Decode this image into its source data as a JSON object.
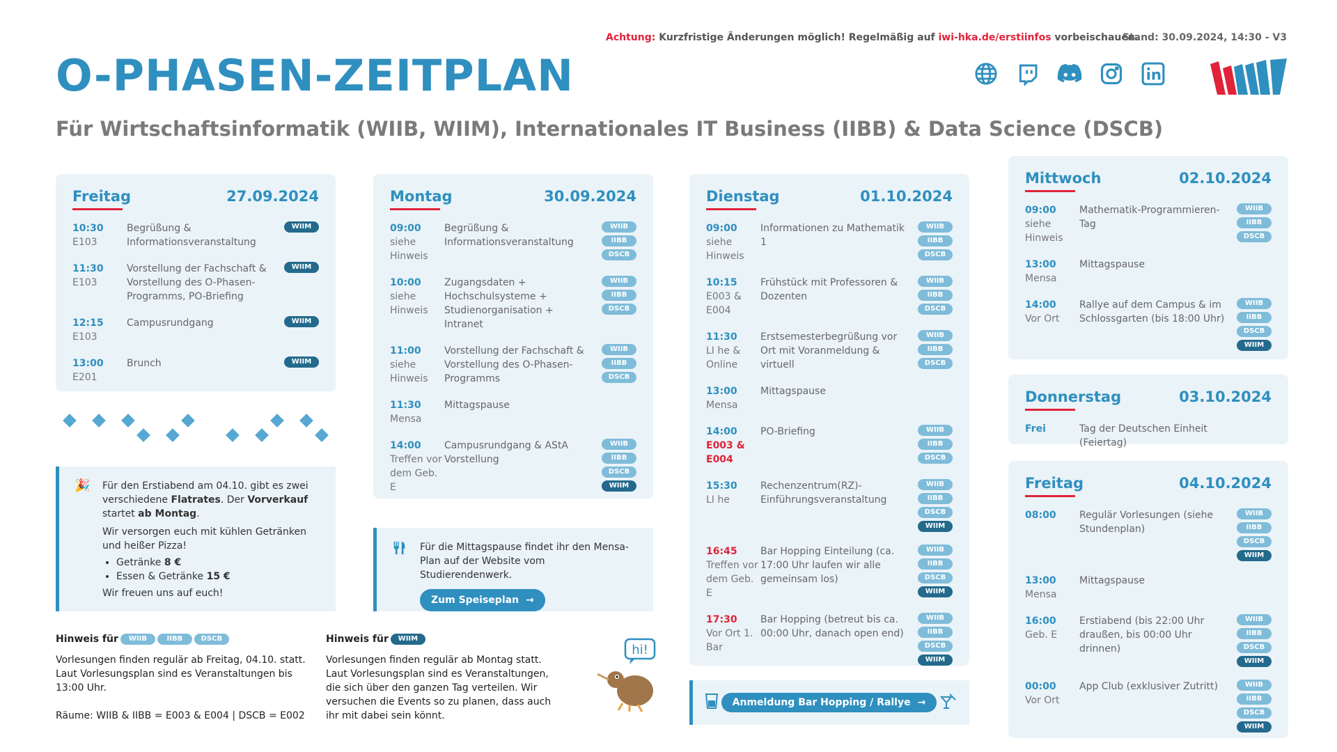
{
  "top": {
    "warn_label": "Achtung:",
    "warn_text": "Kurzfristige Änderungen möglich! Regelmäßig auf",
    "url": "iwi-hka.de/erstiinfos",
    "warn_tail": "vorbeischauen.",
    "stand": "Stand: 30.09.2024, 14:30 - V3"
  },
  "title": "O-PHASEN-ZEITPLAN",
  "subtitle": "Für Wirtschaftsinformatik (WIIB, WIIM), Internationales IT Business (IIBB) & Data Science (DSCB)",
  "social_icons": [
    "globe-icon",
    "twitch-icon",
    "discord-icon",
    "instagram-icon",
    "linkedin-icon"
  ],
  "colors": {
    "accent": "#2f8fbf",
    "red": "#e0233a",
    "card": "#eaf3f8",
    "badge_light": "#7fbcd9",
    "badge_dark": "#236a8c"
  },
  "days": {
    "fr1": {
      "day": "Freitag",
      "date": "27.09.2024",
      "events": [
        {
          "time": "10:30",
          "loc": "E103",
          "desc": "Begrüßung & Informationsveranstaltung",
          "badges": [
            "WIIM"
          ]
        },
        {
          "time": "11:30",
          "loc": "E103",
          "desc": "Vorstellung der Fachschaft & Vorstellung des O-Phasen-Programms, PO-Briefing",
          "badges": [
            "WIIM"
          ]
        },
        {
          "time": "12:15",
          "loc": "E103",
          "desc": "Campusrundgang",
          "badges": [
            "WIIM"
          ]
        },
        {
          "time": "13:00",
          "loc": "E201",
          "desc": "Brunch",
          "badges": [
            "WIIM"
          ]
        }
      ]
    },
    "mo": {
      "day": "Montag",
      "date": "30.09.2024",
      "events": [
        {
          "time": "09:00",
          "loc": "siehe Hinweis",
          "desc": "Begrüßung & Informationsveranstaltung",
          "badges": [
            "WIIB",
            "IIBB",
            "DSCB"
          ]
        },
        {
          "time": "10:00",
          "loc": "siehe Hinweis",
          "desc": "Zugangsdaten + Hochschulsysteme + Studienorganisation + Intranet",
          "badges": [
            "WIIB",
            "IIBB",
            "DSCB"
          ]
        },
        {
          "time": "11:00",
          "loc": "siehe Hinweis",
          "desc": "Vorstellung der Fachschaft & Vorstellung des O-Phasen-Programms",
          "badges": [
            "WIIB",
            "IIBB",
            "DSCB"
          ]
        },
        {
          "time": "11:30",
          "loc": "Mensa",
          "desc": "Mittagspause",
          "badges": []
        },
        {
          "time": "14:00",
          "loc": "Treffen vor dem Geb. E",
          "desc": "Campusrundgang & AStA Vorstellung",
          "badges": [
            "WIIB",
            "IIBB",
            "DSCB",
            "WIIM"
          ]
        }
      ]
    },
    "di": {
      "day": "Dienstag",
      "date": "01.10.2024",
      "events": [
        {
          "time": "09:00",
          "loc": "siehe Hinweis",
          "desc": "Informationen zu Mathematik 1",
          "badges": [
            "WIIB",
            "IIBB",
            "DSCB"
          ]
        },
        {
          "time": "10:15",
          "loc": "E003 & E004",
          "desc": "Frühstück mit Professoren & Dozenten",
          "badges": [
            "WIIB",
            "IIBB",
            "DSCB"
          ]
        },
        {
          "time": "11:30",
          "loc": "LI he & Online",
          "desc": "Erstsemesterbegrüßung vor Ort mit Voranmeldung & virtuell",
          "badges": [
            "WIIB",
            "IIBB",
            "DSCB"
          ]
        },
        {
          "time": "13:00",
          "loc": "Mensa",
          "desc": "Mittagspause",
          "badges": []
        },
        {
          "time": "14:00",
          "loc": "E003 & E004",
          "desc": "PO-Briefing",
          "badges": [
            "WIIB",
            "IIBB",
            "DSCB"
          ],
          "loc_red": true
        },
        {
          "time": "15:30",
          "loc": "LI he",
          "desc": "Rechenzentrum(RZ)-Einführungsveranstaltung",
          "badges": [
            "WIIB",
            "IIBB",
            "DSCB",
            "WIIM"
          ]
        },
        {
          "time": "16:45",
          "loc": "Treffen vor dem Geb. E",
          "desc": "Bar Hopping Einteilung (ca. 17:00 Uhr laufen wir alle gemeinsam los)",
          "badges": [
            "WIIB",
            "IIBB",
            "DSCB",
            "WIIM"
          ],
          "time_red": true
        },
        {
          "time": "17:30",
          "loc": "Vor Ort 1. Bar",
          "desc": "Bar Hopping (betreut bis ca. 00:00 Uhr, danach open end)",
          "badges": [
            "WIIB",
            "IIBB",
            "DSCB",
            "WIIM"
          ],
          "time_red": true
        }
      ]
    },
    "mi": {
      "day": "Mittwoch",
      "date": "02.10.2024",
      "events": [
        {
          "time": "09:00",
          "loc": "siehe Hinweis",
          "desc": "Mathematik-Programmieren-Tag",
          "badges": [
            "WIIB",
            "IIBB",
            "DSCB"
          ]
        },
        {
          "time": "13:00",
          "loc": "Mensa",
          "desc": "Mittagspause",
          "badges": []
        },
        {
          "time": "14:00",
          "loc": "Vor Ort",
          "desc": "Rallye auf dem Campus & im Schlossgarten (bis 18:00 Uhr)",
          "badges": [
            "WIIB",
            "IIBB",
            "DSCB",
            "WIIM"
          ]
        }
      ]
    },
    "do": {
      "day": "Donnerstag",
      "date": "03.10.2024",
      "events": [
        {
          "time": "Frei",
          "loc": "",
          "desc": "Tag der Deutschen Einheit (Feiertag)",
          "badges": []
        }
      ]
    },
    "fr2": {
      "day": "Freitag",
      "date": "04.10.2024",
      "events": [
        {
          "time": "08:00",
          "loc": "",
          "desc": "Regulär Vorlesungen (siehe Stundenplan)",
          "badges": [
            "WIIB",
            "IIBB",
            "DSCB",
            "WIIM"
          ]
        },
        {
          "time": "13:00",
          "loc": "Mensa",
          "desc": "Mittagspause",
          "badges": []
        },
        {
          "time": "16:00",
          "loc": "Geb. E",
          "desc": "Erstiabend (bis 22:00 Uhr draußen, bis 00:00 Uhr drinnen)",
          "badges": [
            "WIIB",
            "IIBB",
            "DSCB",
            "WIIM"
          ]
        },
        {
          "time": "00:00",
          "loc": "Vor Ort",
          "desc": "App Club (exklusiver Zutritt)",
          "badges": [
            "WIIB",
            "IIBB",
            "DSCB",
            "WIIM"
          ]
        }
      ]
    }
  },
  "party": {
    "icon": "party-popper-icon",
    "p1_a": "Für den Erstiabend am 04.10. gibt es zwei verschiedene ",
    "p1_b": "Flatrates",
    "p1_c": ". Der ",
    "p1_d": "Vorverkauf",
    "p1_e": " startet ",
    "p1_f": "ab Montag",
    "p1_g": ".",
    "p2": "Wir versorgen euch mit kühlen Getränken und heißer Pizza!",
    "item1_label": "Getränke ",
    "item1_price": "8 €",
    "item2_label": "Essen & Getränke ",
    "item2_price": "15 €",
    "p3": "Wir freuen uns auf euch!"
  },
  "mensa": {
    "icon": "cutlery-icon",
    "text": "Für die Mittagspause findet ihr den Mensa-Plan auf der Website vom Studierendenwerk.",
    "button": "Zum Speiseplan"
  },
  "hint1": {
    "label": "Hinweis für",
    "badges": [
      "WIIB",
      "IIBB",
      "DSCB"
    ],
    "text": "Vorlesungen finden regulär ab Freitag, 04.10. statt. Laut Vorlesungsplan sind es Veranstaltungen bis 13:00 Uhr.",
    "rooms": "Räume: WIIB & IIBB = E003 & E004 | DSCB = E002"
  },
  "hint2": {
    "label": "Hinweis für",
    "badges": [
      "WIIM"
    ],
    "text": "Vorlesungen finden regulär ab Montag statt. Laut Vorlesungsplan sind es Veranstaltungen, die sich über den ganzen Tag verteilen. Wir versuchen die Events so zu planen, dass auch ihr mit dabei sein könnt."
  },
  "mascot": {
    "speech": "hi!",
    "icon": "kiwi-mascot-icon"
  },
  "register": {
    "button": "Anmeldung Bar Hopping / Rallye",
    "left_icon": "drink-icon",
    "right_icon": "cocktail-icon"
  }
}
